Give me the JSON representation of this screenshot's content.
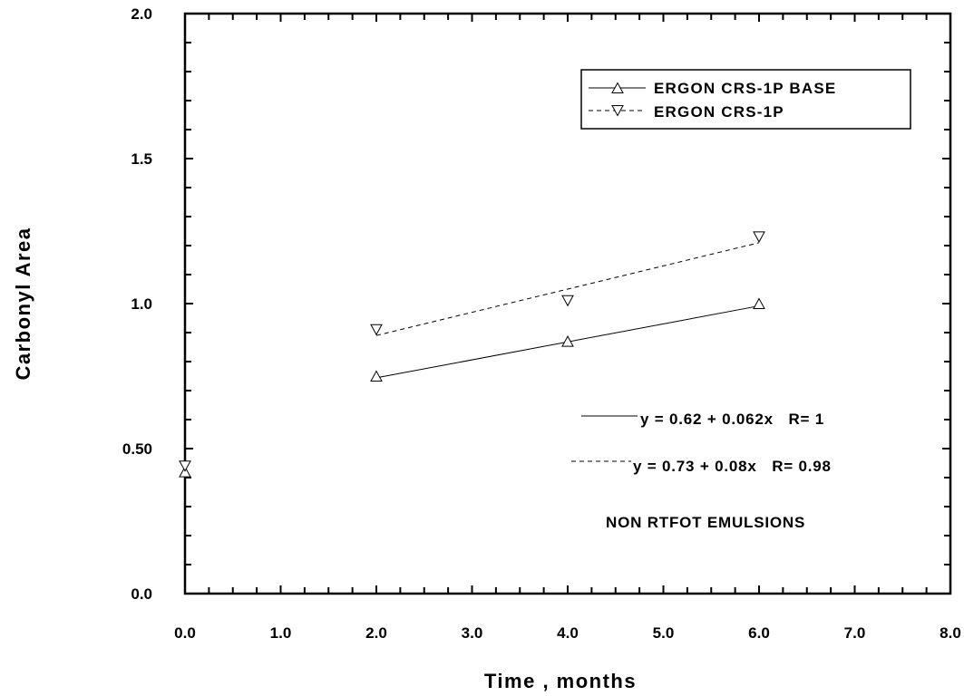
{
  "chart_data": {
    "type": "scatter",
    "xlabel": "Time , months",
    "ylabel": "Carbonyl Area",
    "xlim": [
      0,
      8
    ],
    "ylim": [
      0,
      2
    ],
    "x_ticks": [
      "0.0",
      "1.0",
      "2.0",
      "3.0",
      "4.0",
      "5.0",
      "6.0",
      "7.0",
      "8.0"
    ],
    "y_ticks": [
      "0.0",
      "0.50",
      "1.0",
      "1.5",
      "2.0"
    ],
    "grid": false,
    "legend_position": "top-right",
    "series": [
      {
        "name": "ERGON CRS-1P BASE",
        "marker": "triangle-up",
        "line_style": "solid",
        "color": "#000000",
        "x": [
          0,
          2,
          4,
          6
        ],
        "y": [
          0.42,
          0.75,
          0.87,
          1.0
        ],
        "fit": {
          "intercept": 0.62,
          "slope": 0.062,
          "x_range": [
            2,
            6
          ],
          "label": "y = 0.62 + 0.062x   R= 1"
        }
      },
      {
        "name": "ERGON CRS-1P",
        "marker": "triangle-down",
        "line_style": "dashed",
        "color": "#000000",
        "x": [
          0,
          2,
          4,
          6
        ],
        "y": [
          0.44,
          0.91,
          1.01,
          1.23
        ],
        "fit": {
          "intercept": 0.73,
          "slope": 0.08,
          "x_range": [
            2,
            6
          ],
          "label": "y = 0.73 + 0.08x   R= 0.98"
        }
      }
    ],
    "annotations": [
      "NON RTFOT EMULSIONS"
    ]
  }
}
